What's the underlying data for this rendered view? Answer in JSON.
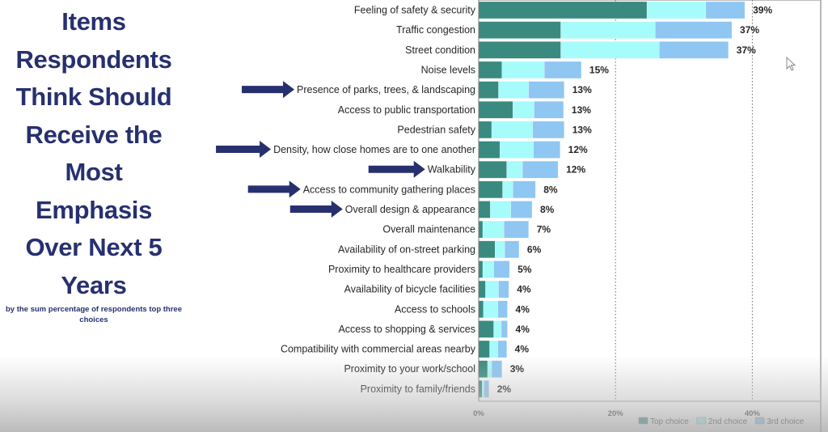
{
  "slide": {
    "title": "Items Respondents Think Should Receive the Most Emphasis Over Next 5 Years",
    "title_lines": "Items\nRespondents\nThink Should\nReceive the\nMost\nEmphasis\nOver Next 5\nYears",
    "subtitle": "by the sum percentage of respondents top three choices",
    "colors": {
      "title": "#27306f",
      "arrow": "#27306f",
      "top_choice": "#3a8a80",
      "second_choice": "#a6fbfb",
      "third_choice": "#8fc6f2"
    }
  },
  "chart_data": {
    "type": "bar",
    "orientation": "horizontal",
    "stacked": true,
    "title": "Items Respondents Think Should Receive the Most Emphasis Over Next 5 Years",
    "subtitle": "by the sum percentage of respondents top three choices",
    "xlabel": "",
    "ylabel": "",
    "xlim": [
      0,
      0.5
    ],
    "x_ticks": [
      "0%",
      "20%",
      "40%"
    ],
    "x_tick_values": [
      0,
      0.2,
      0.4
    ],
    "grid": "vertical dotted at 20% and 40%",
    "legend_position": "bottom-right",
    "categories": [
      "Feeling of safety & security",
      "Traffic congestion",
      "Street condition",
      "Noise levels",
      "Presence of parks, trees, & landscaping",
      "Access to public transportation",
      "Pedestrian safety",
      "Density, how close homes are to one another",
      "Walkability",
      "Access to community gathering places",
      "Overall design & appearance",
      "Overall maintenance",
      "Availability of on-street parking",
      "Proximity to healthcare providers",
      "Availability of bicycle facilities",
      "Access to schools",
      "Access to shopping & services",
      "Compatibility with commercial areas nearby",
      "Proximity to your work/school",
      "Proximity to family/friends"
    ],
    "series": [
      {
        "name": "Top choice",
        "values": [
          24.6,
          12.0,
          12.0,
          3.4,
          2.9,
          5.0,
          1.9,
          3.1,
          4.1,
          3.5,
          1.7,
          0.6,
          2.4,
          0.6,
          1.0,
          0.7,
          2.2,
          1.6,
          1.3,
          0.5
        ]
      },
      {
        "name": "2nd choice",
        "values": [
          8.6,
          13.8,
          14.4,
          6.2,
          4.4,
          3.1,
          6.0,
          4.9,
          2.3,
          1.5,
          3.0,
          3.1,
          1.4,
          1.6,
          1.9,
          2.1,
          1.1,
          1.2,
          0.6,
          0.3
        ]
      },
      {
        "name": "3rd choice",
        "values": [
          5.7,
          11.2,
          10.1,
          5.4,
          5.2,
          4.3,
          4.6,
          3.9,
          5.2,
          3.3,
          3.1,
          3.6,
          2.1,
          2.3,
          1.5,
          1.4,
          0.9,
          1.3,
          1.5,
          0.7
        ]
      }
    ],
    "totals_labels": [
      "39%",
      "37%",
      "37%",
      "15%",
      "13%",
      "13%",
      "13%",
      "12%",
      "12%",
      "8%",
      "8%",
      "7%",
      "6%",
      "5%",
      "4%",
      "4%",
      "4%",
      "4%",
      "3%",
      "2%"
    ],
    "annotations": [
      {
        "type": "arrow",
        "points_to": "Presence of parks, trees, & landscaping"
      },
      {
        "type": "arrow",
        "points_to": "Density, how close homes are to one another"
      },
      {
        "type": "arrow",
        "points_to": "Walkability"
      },
      {
        "type": "arrow",
        "points_to": "Access to community gathering places"
      },
      {
        "type": "arrow",
        "points_to": "Overall design & appearance"
      }
    ]
  }
}
